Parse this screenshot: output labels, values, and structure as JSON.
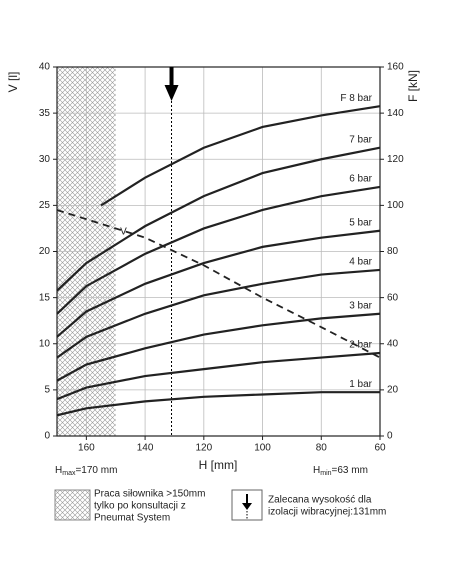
{
  "chart_data": {
    "type": "line",
    "ylabel": "V [l]",
    "y2label": "F [kN]",
    "xlabel": "H [mm]",
    "xlim": [
      170,
      60
    ],
    "xticks": [
      160,
      140,
      120,
      100,
      80,
      60
    ],
    "ylim": [
      0,
      40
    ],
    "yticks": [
      0,
      5,
      10,
      15,
      20,
      25,
      30,
      35,
      40
    ],
    "y2lim": [
      0,
      160
    ],
    "y2ticks": [
      0,
      20,
      40,
      60,
      80,
      100,
      120,
      140,
      160
    ],
    "grid": true,
    "series": [
      {
        "name": "1 bar",
        "color": "#222222",
        "axis": "y2",
        "x": [
          170,
          160,
          140,
          120,
          100,
          80,
          60
        ],
        "values": [
          9,
          12,
          15,
          17,
          18,
          19,
          19
        ]
      },
      {
        "name": "2 bar",
        "color": "#222222",
        "axis": "y2",
        "x": [
          170,
          160,
          140,
          120,
          100,
          80,
          60
        ],
        "values": [
          16,
          21,
          26,
          29,
          32,
          34,
          36
        ]
      },
      {
        "name": "3 bar",
        "color": "#222222",
        "axis": "y2",
        "x": [
          170,
          160,
          140,
          120,
          100,
          80,
          60
        ],
        "values": [
          24,
          31,
          38,
          44,
          48,
          51,
          53
        ]
      },
      {
        "name": "4 bar",
        "color": "#222222",
        "axis": "y2",
        "x": [
          170,
          160,
          140,
          120,
          100,
          80,
          60
        ],
        "values": [
          34,
          43,
          53,
          61,
          66,
          70,
          72
        ]
      },
      {
        "name": "5 bar",
        "color": "#222222",
        "axis": "y2",
        "x": [
          170,
          160,
          140,
          120,
          100,
          80,
          60
        ],
        "values": [
          43,
          54,
          66,
          75,
          82,
          86,
          89
        ]
      },
      {
        "name": "6 bar",
        "color": "#222222",
        "axis": "y2",
        "x": [
          170,
          160,
          140,
          120,
          100,
          80,
          60
        ],
        "values": [
          53,
          65,
          79,
          90,
          98,
          104,
          108
        ]
      },
      {
        "name": "7 bar",
        "color": "#222222",
        "axis": "y2",
        "x": [
          170,
          160,
          140,
          120,
          100,
          80,
          60
        ],
        "values": [
          63,
          75,
          91,
          104,
          114,
          120,
          125
        ]
      },
      {
        "name": "F 8 bar",
        "color": "#222222",
        "axis": "y2",
        "x": [
          155,
          140,
          120,
          100,
          80,
          60
        ],
        "values": [
          100,
          112,
          125,
          134,
          139,
          143
        ]
      },
      {
        "name": "V",
        "color": "#222222",
        "dashed": true,
        "x": [
          170,
          140,
          120,
          100,
          80,
          60
        ],
        "values": [
          24.5,
          21.5,
          18.5,
          15,
          11.8,
          8.5
        ]
      }
    ],
    "hatch_xlim": [
      170,
      150
    ],
    "recommended_height": 131,
    "h_max": {
      "symbol": "H",
      "sub": "max",
      "text": "=170 mm"
    },
    "h_min": {
      "symbol": "H",
      "sub": "min",
      "text": "=63 mm"
    },
    "legend_hatch": [
      "Praca siłownika >150mm",
      "tylko po konsultacji z",
      "Pneumat System"
    ],
    "legend_arrow": [
      "Zalecana wysokość dla",
      "izolacji wibracyjnej:131mm"
    ]
  }
}
